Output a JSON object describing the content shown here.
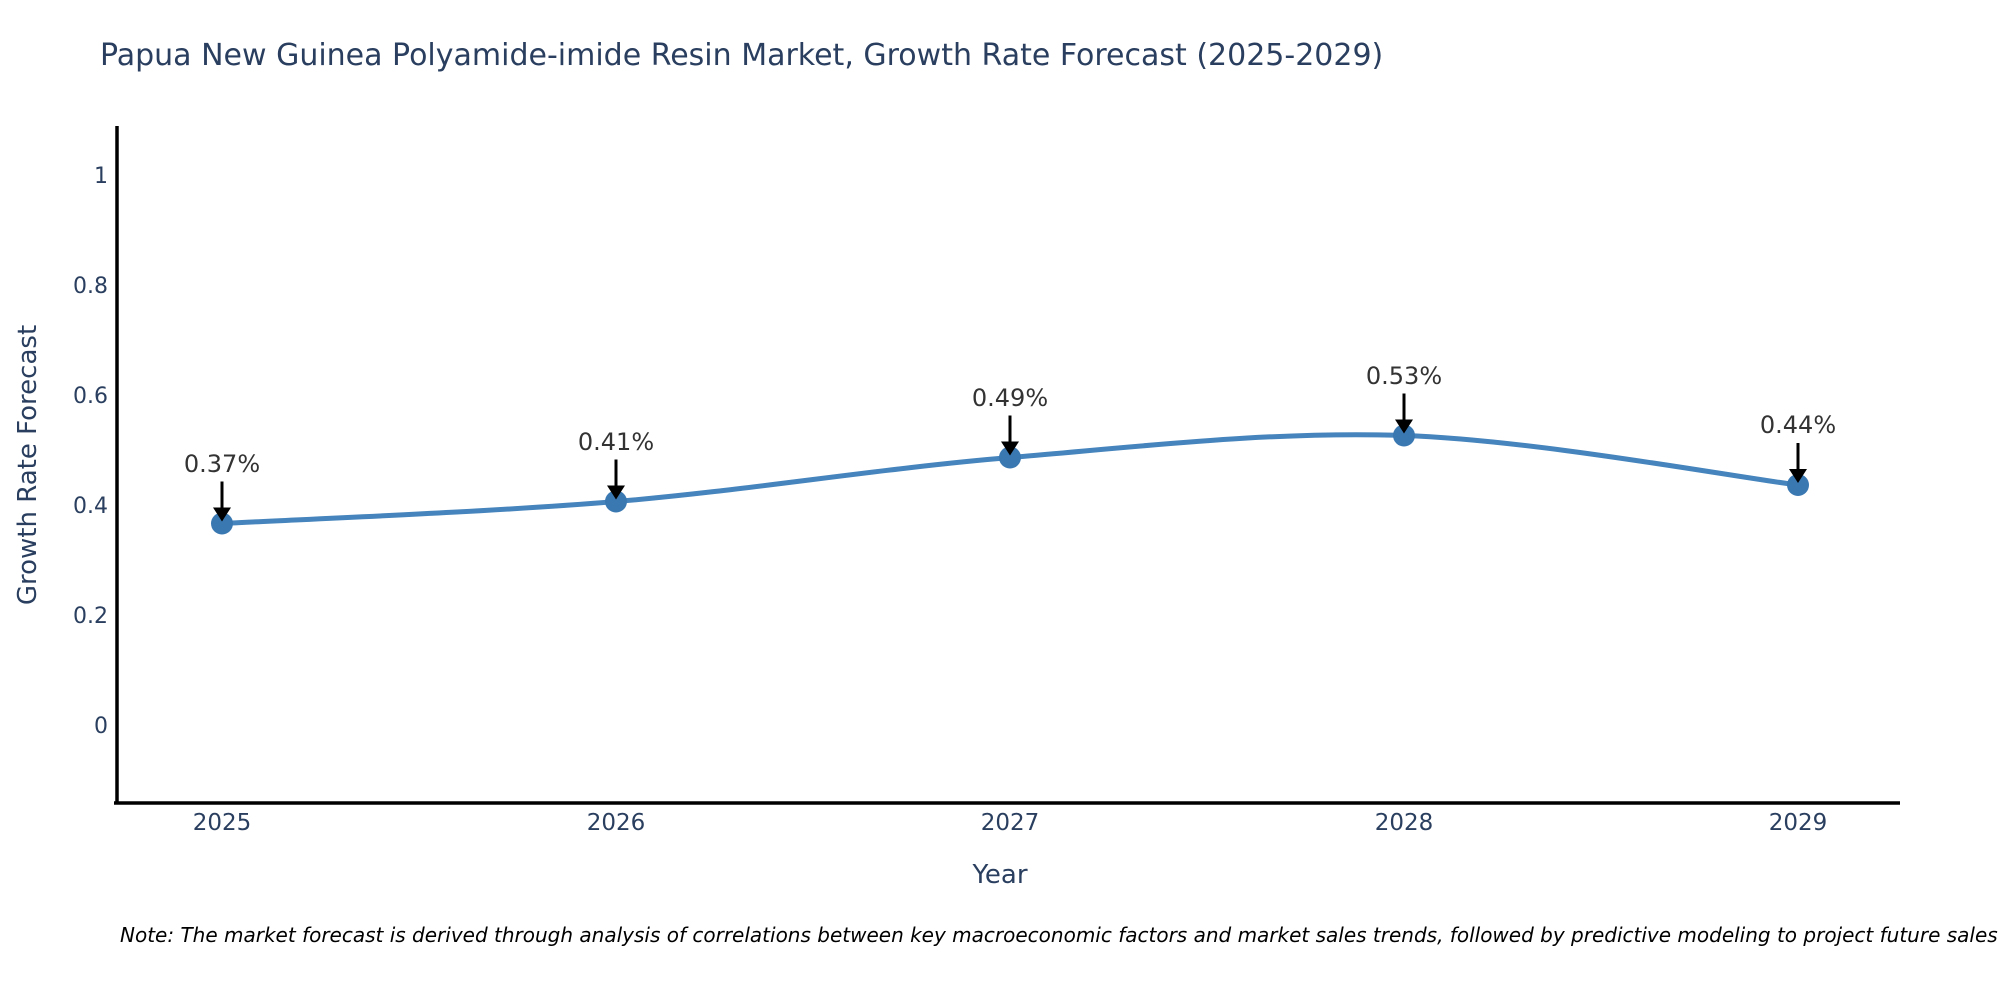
{
  "chart_data": {
    "type": "line",
    "title": "Papua New Guinea Polyamide-imide Resin Market, Growth Rate Forecast (2025-2029)",
    "xlabel": "Year",
    "ylabel": "Growth Rate Forecast",
    "x": [
      2025,
      2026,
      2027,
      2028,
      2029
    ],
    "series": [
      {
        "name": "Growth Rate Forecast",
        "values": [
          0.37,
          0.41,
          0.49,
          0.53,
          0.44
        ],
        "point_labels": [
          "0.37%",
          "0.41%",
          "0.49%",
          "0.53%",
          "0.44%"
        ]
      }
    ],
    "xticks": [
      "2025",
      "2026",
      "2027",
      "2028",
      "2029"
    ],
    "yticks": [
      "0",
      "0.2",
      "0.4",
      "0.6",
      "0.8",
      "1"
    ],
    "ytick_values": [
      0,
      0.2,
      0.4,
      0.6,
      0.8,
      1
    ],
    "ylim": [
      -0.14,
      1.09
    ],
    "grid": false,
    "legend": "none",
    "line_shape": "spline",
    "annotations_have_arrows": true,
    "colors": {
      "line": "#4584bc",
      "marker": "#3a78b2",
      "arrow": "#000000",
      "axis": "#000000",
      "axis_text": "#2a3f5f",
      "annotation_text": "#333333",
      "background": "#ffffff"
    }
  },
  "footnote": "Note: The market forecast is derived through analysis of correlations between key macroeconomic factors and market sales trends, followed by predictive modeling to project future sales"
}
